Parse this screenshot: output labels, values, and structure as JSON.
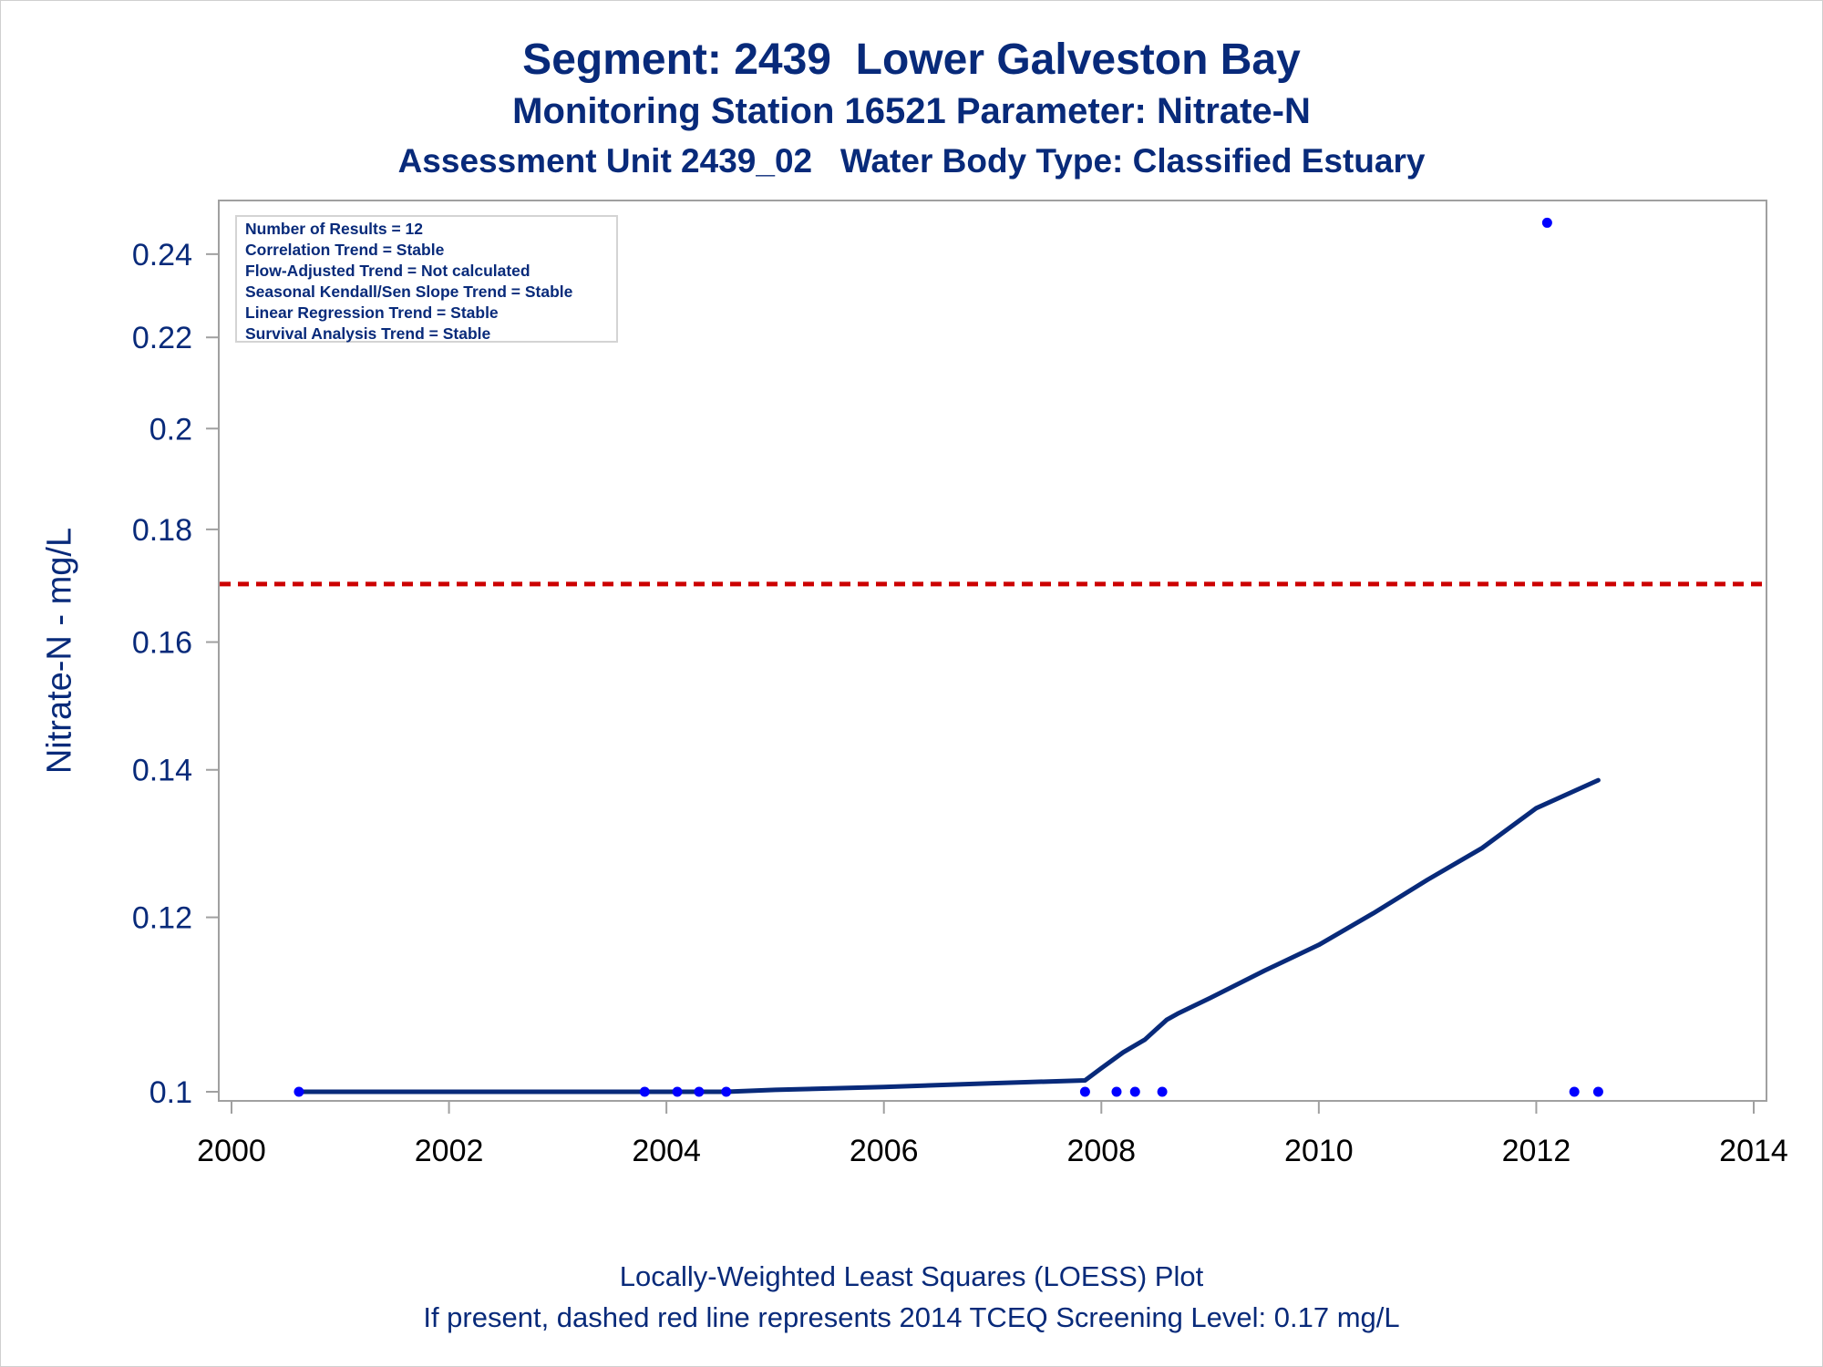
{
  "title_lines": [
    "Segment: 2439  Lower Galveston Bay",
    "Monitoring Station 16521 Parameter: Nitrate-N",
    "Assessment Unit 2439_02   Water Body Type: Classified Estuary"
  ],
  "footer_lines": [
    "Locally-Weighted Least Squares (LOESS) Plot",
    "If present, dashed red line represents 2014 TCEQ Screening Level: 0.17 mg/L"
  ],
  "stats_box": [
    "Number of Results = 12",
    "Correlation Trend = Stable",
    "Flow-Adjusted Trend = Not calculated",
    "Seasonal Kendall/Sen Slope Trend = Stable",
    "Linear Regression Trend = Stable",
    "Survival Analysis Trend = Stable"
  ],
  "colors": {
    "text": "#082a7a",
    "points": "#0000ff",
    "loess_line": "#082a7a",
    "screening_line": "#cc0000",
    "axis": "#a0a0a0"
  },
  "chart_data": {
    "type": "scatter",
    "ylabel": "Nitrate-N - mg/L",
    "xlabel": "",
    "xlim": [
      2000,
      2014
    ],
    "ylim": [
      0.1,
      0.25
    ],
    "y_scale": "log",
    "x_ticks": [
      2000,
      2002,
      2004,
      2006,
      2008,
      2010,
      2012,
      2014
    ],
    "y_ticks": [
      0.1,
      0.12,
      0.14,
      0.16,
      0.18,
      0.2,
      0.22,
      0.24
    ],
    "y_tick_labels": [
      "0.1",
      "0.12",
      "0.14",
      "0.16",
      "0.18",
      "0.2",
      "0.22",
      "0.24"
    ],
    "series": [
      {
        "type": "scatter",
        "x": [
          2000.62,
          2003.8,
          2004.1,
          2004.3,
          2004.55,
          2007.85,
          2008.14,
          2008.31,
          2008.56,
          2012.1,
          2012.35,
          2012.57
        ],
        "y": [
          0.1,
          0.1,
          0.1,
          0.1,
          0.1,
          0.1,
          0.1,
          0.1,
          0.1,
          0.248,
          0.1,
          0.1
        ]
      },
      {
        "type": "line",
        "x": [
          2000.62,
          2004.0,
          2004.55,
          2005.0,
          2006.0,
          2007.0,
          2007.85,
          2008.0,
          2008.2,
          2008.4,
          2008.6,
          2008.7,
          2009.0,
          2009.5,
          2010.0,
          2010.5,
          2011.0,
          2011.5,
          2012.0,
          2012.57
        ],
        "y": [
          0.1,
          0.1,
          0.1,
          0.1002,
          0.1005,
          0.1009,
          0.1012,
          0.1025,
          0.1042,
          0.1056,
          0.1078,
          0.1085,
          0.1103,
          0.1135,
          0.1166,
          0.1205,
          0.1248,
          0.129,
          0.1345,
          0.1385
        ]
      }
    ],
    "reference_line": {
      "y": 0.17,
      "style": "dashed"
    },
    "grid": false,
    "legend": "top-left"
  }
}
